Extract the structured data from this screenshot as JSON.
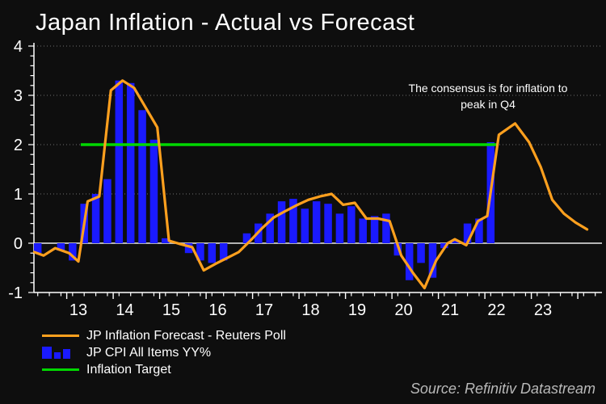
{
  "title": "Japan Inflation - Actual vs Forecast",
  "annotation": {
    "line1": "The consensus is for inflation to",
    "line2": "peak in Q4"
  },
  "source": "Source: Refinitiv Datastream",
  "legend": {
    "items": [
      {
        "label": "JP Inflation Forecast - Reuters Poll",
        "swatch": "orange-line"
      },
      {
        "label": "JP CPI All Items YY%",
        "swatch": "blue-bars"
      },
      {
        "label": "Inflation Target",
        "swatch": "green-line"
      }
    ]
  },
  "colors": {
    "background": "#0e0e0e",
    "bar_blue": "#1a1aff",
    "forecast_orange": "#ffa01e",
    "target_green": "#00d800",
    "text_white": "#ffffff",
    "zero_line": "#b4b4b4",
    "grid": "#6e6e6e",
    "axis": "#ffffff",
    "source_gray": "#b9b9b9"
  },
  "chart_data": {
    "type": "bar",
    "subtype": "quarterly bars with line overlays",
    "title": "Japan Inflation - Actual vs Forecast",
    "xlabel": "",
    "ylabel": "",
    "x_axis": {
      "unit": "year (20xx)",
      "tick_labels": [
        "13",
        "14",
        "15",
        "16",
        "17",
        "18",
        "19",
        "20",
        "21",
        "22",
        "23"
      ],
      "first_label_year": 13,
      "range": [
        12.5,
        24.7
      ],
      "minor_tick_interval_years": 0.25
    },
    "y_axis": {
      "ticks": [
        -1,
        0,
        1,
        2,
        3,
        4
      ],
      "range": [
        -1,
        4
      ],
      "dotted_gridlines_at": [
        1,
        2,
        3,
        4
      ],
      "solid_zero_line": true
    },
    "legend_position": "bottom-left",
    "series": [
      {
        "name": "JP CPI All Items YY%",
        "type": "bar",
        "color": "#1a1aff",
        "points": [
          [
            12.625,
            -0.2
          ],
          [
            12.875,
            0
          ],
          [
            13.125,
            -0.15
          ],
          [
            13.375,
            -0.35
          ],
          [
            13.625,
            0.8
          ],
          [
            13.875,
            1.0
          ],
          [
            14.125,
            1.3
          ],
          [
            14.375,
            3.3
          ],
          [
            14.625,
            3.25
          ],
          [
            14.875,
            2.7
          ],
          [
            15.125,
            2.1
          ],
          [
            15.375,
            0.1
          ],
          [
            15.625,
            0
          ],
          [
            15.875,
            -0.2
          ],
          [
            16.125,
            -0.35
          ],
          [
            16.375,
            -0.4
          ],
          [
            16.625,
            -0.35
          ],
          [
            16.875,
            0
          ],
          [
            17.125,
            0.2
          ],
          [
            17.375,
            0.4
          ],
          [
            17.625,
            0.6
          ],
          [
            17.875,
            0.85
          ],
          [
            18.125,
            0.9
          ],
          [
            18.375,
            0.7
          ],
          [
            18.625,
            0.85
          ],
          [
            18.875,
            0.8
          ],
          [
            19.125,
            0.6
          ],
          [
            19.375,
            0.75
          ],
          [
            19.625,
            0.5
          ],
          [
            19.875,
            0.55
          ],
          [
            20.125,
            0.6
          ],
          [
            20.375,
            -0.25
          ],
          [
            20.625,
            -0.75
          ],
          [
            20.875,
            -0.4
          ],
          [
            21.125,
            -0.7
          ],
          [
            21.375,
            -0.1
          ],
          [
            21.625,
            0.05
          ],
          [
            21.875,
            0.4
          ],
          [
            22.125,
            0.5
          ],
          [
            22.375,
            2.05
          ]
        ]
      },
      {
        "name": "JP Inflation Forecast - Reuters Poll",
        "type": "line",
        "color": "#ffa01e",
        "points": [
          [
            12.55,
            -0.18
          ],
          [
            12.75,
            -0.25
          ],
          [
            13.0,
            -0.1
          ],
          [
            13.3,
            -0.2
          ],
          [
            13.5,
            -0.37
          ],
          [
            13.7,
            0.85
          ],
          [
            13.95,
            0.95
          ],
          [
            14.2,
            3.1
          ],
          [
            14.45,
            3.3
          ],
          [
            14.7,
            3.15
          ],
          [
            14.95,
            2.75
          ],
          [
            15.2,
            2.35
          ],
          [
            15.45,
            0.05
          ],
          [
            15.7,
            -0.02
          ],
          [
            15.95,
            -0.08
          ],
          [
            16.2,
            -0.55
          ],
          [
            16.45,
            -0.42
          ],
          [
            16.7,
            -0.3
          ],
          [
            16.95,
            -0.18
          ],
          [
            17.2,
            0.05
          ],
          [
            17.45,
            0.3
          ],
          [
            17.7,
            0.52
          ],
          [
            17.95,
            0.65
          ],
          [
            18.2,
            0.77
          ],
          [
            18.45,
            0.88
          ],
          [
            18.7,
            0.95
          ],
          [
            18.95,
            1.0
          ],
          [
            19.2,
            0.78
          ],
          [
            19.45,
            0.82
          ],
          [
            19.7,
            0.5
          ],
          [
            19.95,
            0.5
          ],
          [
            20.2,
            0.45
          ],
          [
            20.45,
            -0.25
          ],
          [
            20.7,
            -0.6
          ],
          [
            20.95,
            -0.91
          ],
          [
            21.2,
            -0.35
          ],
          [
            21.45,
            0.0
          ],
          [
            21.6,
            0.08
          ],
          [
            21.85,
            -0.04
          ],
          [
            22.1,
            0.45
          ],
          [
            22.3,
            0.55
          ],
          [
            22.55,
            2.2
          ],
          [
            22.9,
            2.43
          ],
          [
            23.2,
            2.05
          ],
          [
            23.45,
            1.55
          ],
          [
            23.7,
            0.88
          ],
          [
            23.95,
            0.6
          ],
          [
            24.2,
            0.42
          ],
          [
            24.45,
            0.28
          ]
        ]
      },
      {
        "name": "Inflation Target",
        "type": "line",
        "color": "#00d800",
        "points": [
          [
            13.55,
            2
          ],
          [
            22.5,
            2
          ]
        ]
      }
    ],
    "annotation": "The consensus is for inflation to peak in Q4"
  }
}
